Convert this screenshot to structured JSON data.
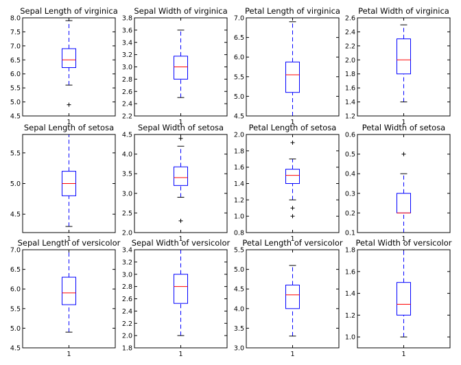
{
  "figure": {
    "layout": {
      "rows": 3,
      "cols": 4
    },
    "colors": {
      "box": "#0000ff",
      "whisker": "#0000ff",
      "median": "#ff0000",
      "cap": "#000000",
      "flier": "#000000",
      "frame": "#000000",
      "background": "#ffffff"
    }
  },
  "chart_data": [
    {
      "type": "box",
      "title": "Sepal Length of virginica",
      "categories": [
        "1"
      ],
      "ylim": [
        4.5,
        8.0
      ],
      "yticks": [
        "4.5",
        "5.0",
        "5.5",
        "6.0",
        "6.5",
        "7.0",
        "7.5",
        "8.0"
      ],
      "box": {
        "whisker_low": 5.6,
        "q1": 6.225,
        "median": 6.5,
        "q3": 6.9,
        "whisker_high": 7.9,
        "fliers": [
          4.9
        ]
      }
    },
    {
      "type": "box",
      "title": "Sepal Width of virginica",
      "categories": [
        "1"
      ],
      "ylim": [
        2.2,
        3.8
      ],
      "yticks": [
        "2.2",
        "2.4",
        "2.6",
        "2.8",
        "3.0",
        "3.2",
        "3.4",
        "3.6",
        "3.8"
      ],
      "box": {
        "whisker_low": 2.5,
        "q1": 2.8,
        "median": 3.0,
        "q3": 3.175,
        "whisker_high": 3.6,
        "fliers": []
      }
    },
    {
      "type": "box",
      "title": "Petal Length of virginica",
      "categories": [
        "1"
      ],
      "ylim": [
        4.5,
        7.0
      ],
      "yticks": [
        "4.5",
        "5.0",
        "5.5",
        "6.0",
        "6.5",
        "7.0"
      ],
      "box": {
        "whisker_low": 4.5,
        "q1": 5.1,
        "median": 5.55,
        "q3": 5.875,
        "whisker_high": 6.9,
        "fliers": []
      }
    },
    {
      "type": "box",
      "title": "Petal Width of virginica",
      "categories": [
        "1"
      ],
      "ylim": [
        1.2,
        2.6
      ],
      "yticks": [
        "1.2",
        "1.4",
        "1.6",
        "1.8",
        "2.0",
        "2.2",
        "2.4",
        "2.6"
      ],
      "box": {
        "whisker_low": 1.4,
        "q1": 1.8,
        "median": 2.0,
        "q3": 2.3,
        "whisker_high": 2.5,
        "fliers": []
      }
    },
    {
      "type": "box",
      "title": "Sepal Length of setosa",
      "categories": [
        "1"
      ],
      "ylim": [
        4.2,
        5.8
      ],
      "yticks": [
        "4.5",
        "5.0",
        "5.5"
      ],
      "box": {
        "whisker_low": 4.3,
        "q1": 4.8,
        "median": 5.0,
        "q3": 5.2,
        "whisker_high": 5.8,
        "fliers": []
      }
    },
    {
      "type": "box",
      "title": "Sepal Width of setosa",
      "categories": [
        "1"
      ],
      "ylim": [
        2.0,
        4.5
      ],
      "yticks": [
        "2.0",
        "2.5",
        "3.0",
        "3.5",
        "4.0",
        "4.5"
      ],
      "box": {
        "whisker_low": 2.9,
        "q1": 3.2,
        "median": 3.4,
        "q3": 3.675,
        "whisker_high": 4.2,
        "fliers": [
          2.3,
          4.4
        ]
      }
    },
    {
      "type": "box",
      "title": "Petal Length of setosa",
      "categories": [
        "1"
      ],
      "ylim": [
        0.8,
        2.0
      ],
      "yticks": [
        "0.8",
        "1.0",
        "1.2",
        "1.4",
        "1.6",
        "1.8",
        "2.0"
      ],
      "box": {
        "whisker_low": 1.2,
        "q1": 1.4,
        "median": 1.5,
        "q3": 1.575,
        "whisker_high": 1.7,
        "fliers": [
          1.0,
          1.1,
          1.9
        ]
      }
    },
    {
      "type": "box",
      "title": "Petal Width of setosa",
      "categories": [
        "1"
      ],
      "ylim": [
        0.1,
        0.6
      ],
      "yticks": [
        "0.1",
        "0.2",
        "0.3",
        "0.4",
        "0.5",
        "0.6"
      ],
      "box": {
        "whisker_low": 0.1,
        "q1": 0.2,
        "median": 0.2,
        "q3": 0.3,
        "whisker_high": 0.4,
        "fliers": [
          0.5
        ]
      }
    },
    {
      "type": "box",
      "title": "Sepal Length of versicolor",
      "categories": [
        "1"
      ],
      "ylim": [
        4.5,
        7.0
      ],
      "yticks": [
        "4.5",
        "5.0",
        "5.5",
        "6.0",
        "6.5",
        "7.0"
      ],
      "box": {
        "whisker_low": 4.9,
        "q1": 5.6,
        "median": 5.9,
        "q3": 6.3,
        "whisker_high": 7.0,
        "fliers": []
      }
    },
    {
      "type": "box",
      "title": "Sepal Width of versicolor",
      "categories": [
        "1"
      ],
      "ylim": [
        1.8,
        3.4
      ],
      "yticks": [
        "1.8",
        "2.0",
        "2.2",
        "2.4",
        "2.6",
        "2.8",
        "3.0",
        "3.2",
        "3.4"
      ],
      "box": {
        "whisker_low": 2.0,
        "q1": 2.525,
        "median": 2.8,
        "q3": 3.0,
        "whisker_high": 3.4,
        "fliers": []
      }
    },
    {
      "type": "box",
      "title": "Petal Length of versicolor",
      "categories": [
        "1"
      ],
      "ylim": [
        3.0,
        5.5
      ],
      "yticks": [
        "3.0",
        "3.5",
        "4.0",
        "4.5",
        "5.0",
        "5.5"
      ],
      "box": {
        "whisker_low": 3.3,
        "q1": 4.0,
        "median": 4.35,
        "q3": 4.6,
        "whisker_high": 5.1,
        "fliers": []
      }
    },
    {
      "type": "box",
      "title": "Petal Width of versicolor",
      "categories": [
        "1"
      ],
      "ylim": [
        0.9,
        1.8
      ],
      "yticks": [
        "1.0",
        "1.2",
        "1.4",
        "1.6",
        "1.8"
      ],
      "box": {
        "whisker_low": 1.0,
        "q1": 1.2,
        "median": 1.3,
        "q3": 1.5,
        "whisker_high": 1.8,
        "fliers": []
      }
    }
  ]
}
